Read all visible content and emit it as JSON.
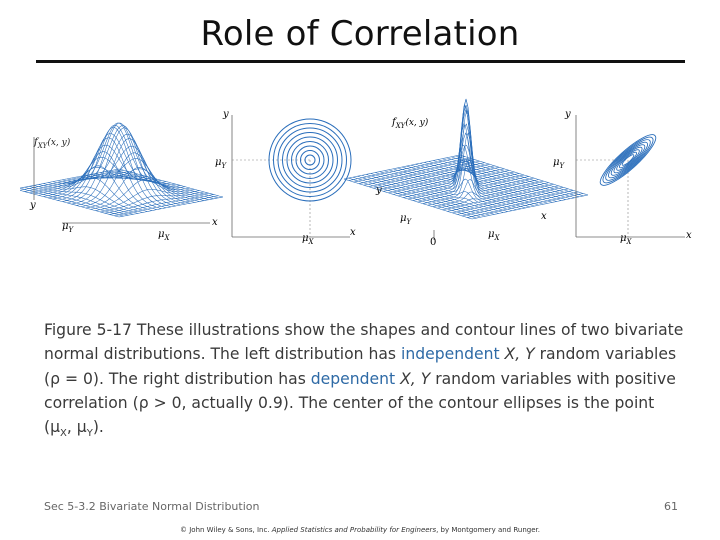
{
  "slide": {
    "title": "Role of Correlation",
    "footer_left": "Sec 5-3.2 Bivariate Normal Distribution",
    "page_number": "61"
  },
  "figure": {
    "left_surface": {
      "zlabel": "f",
      "zsub": "XY",
      "zargs": "(x, y)",
      "y_axis": "y",
      "mu_y": "μ",
      "mu_y_sub": "Y",
      "mu_x": "μ",
      "mu_x_sub": "X",
      "x_axis": "x"
    },
    "left_contour": {
      "y_axis": "y",
      "mu_y": "μ",
      "mu_y_sub": "Y",
      "mu_x": "μ",
      "mu_x_sub": "X",
      "x_axis": "x"
    },
    "right_surface": {
      "zlabel": "f",
      "zsub": "XY",
      "zargs": "(x, y)",
      "y_axis": "y",
      "mu_y": "μ",
      "mu_y_sub": "Y",
      "mu_x": "μ",
      "mu_x_sub": "X",
      "x_axis": "x",
      "origin": "0"
    },
    "right_contour": {
      "y_axis": "y",
      "mu_y": "μ",
      "mu_y_sub": "Y",
      "mu_x": "μ",
      "mu_x_sub": "X",
      "x_axis": "x"
    },
    "line_color": "#2a6ebb"
  },
  "caption": {
    "lead": "Figure 5-17  These illustrations show the shapes and contour lines of two bivariate normal distributions.  The left distribution has ",
    "independent": "independent",
    "xy1": " X, Y",
    "part2": " random variables (ρ = 0).  The right distribution has ",
    "dependent": "dependent",
    "xy2": " X, Y",
    "part3": " random variables with positive correlation (ρ > 0, actually 0.9).  The center of the contour ellipses is the point (μ",
    "sub_x": "X",
    "sep": ", μ",
    "sub_y": "Y",
    "end": ")."
  },
  "credit": {
    "before": "© John Wiley & Sons, Inc.  ",
    "book": "Applied Statistics and Probability for Engineers",
    "after": ", by Montgomery and Runger."
  }
}
